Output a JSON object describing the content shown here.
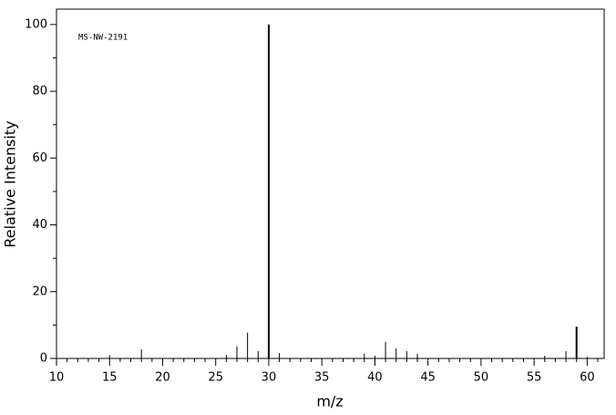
{
  "chart_data": {
    "type": "bar",
    "annotation": "MS-NW-2191",
    "x_label": "m/z",
    "y_label": "Relative Intensity",
    "x": [
      15,
      18,
      26,
      27,
      28,
      29,
      30,
      31,
      39,
      40,
      41,
      42,
      43,
      44,
      56,
      58,
      59,
      60
    ],
    "values": [
      1,
      2.7,
      1,
      3.6,
      7.7,
      2.2,
      100,
      1.6,
      1.4,
      0.8,
      5,
      3,
      2.2,
      1.4,
      0.8,
      2.2,
      9.5,
      0.5
    ],
    "color": "#000000",
    "xlim": [
      10,
      61.6
    ],
    "ylim": [
      0,
      104.6
    ],
    "xticks": [
      10,
      15,
      20,
      25,
      30,
      35,
      40,
      45,
      50,
      55,
      60
    ],
    "xminorticks": [
      11,
      12,
      13,
      14,
      16,
      17,
      18,
      19,
      21,
      22,
      23,
      24,
      26,
      27,
      28,
      29,
      31,
      32,
      33,
      34,
      36,
      37,
      38,
      39,
      41,
      42,
      43,
      44,
      46,
      47,
      48,
      49,
      51,
      52,
      53,
      54,
      56,
      57,
      58,
      59,
      61
    ],
    "yticks": [
      0,
      20,
      40,
      60,
      80,
      100
    ],
    "yminorticks": [
      10,
      30,
      50,
      70,
      90
    ]
  }
}
